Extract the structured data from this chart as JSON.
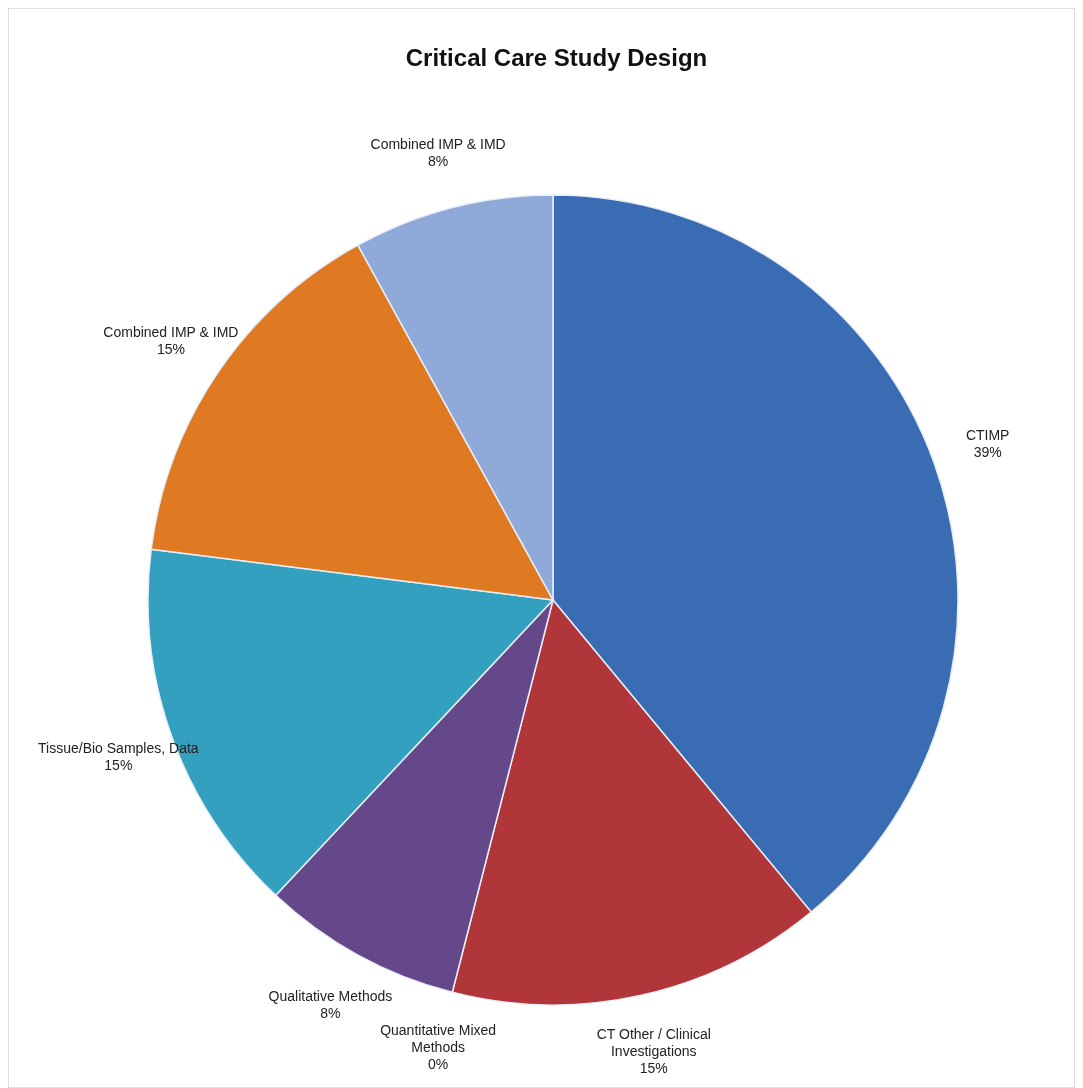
{
  "chart_data": {
    "type": "pie",
    "title": "Critical Care Study Design",
    "categories": [
      "CTIMP",
      "CT Other / Clinical Investigations",
      "Quantitative Mixed Methods",
      "Qualitative Methods",
      "Tissue/Bio Samples, Data",
      "Combined IMP & IMD",
      "Combined IMP & IMD"
    ],
    "values": [
      39,
      15,
      0,
      8,
      15,
      15,
      8
    ],
    "colors": [
      "#3a6cb3",
      "#b0363a",
      "#7f9f45",
      "#654889",
      "#33a0bf",
      "#e07a22",
      "#8fa9d9"
    ],
    "value_labels": [
      "39%",
      "15%",
      "0%",
      "8%",
      "15%",
      "15%",
      "8%"
    ]
  }
}
